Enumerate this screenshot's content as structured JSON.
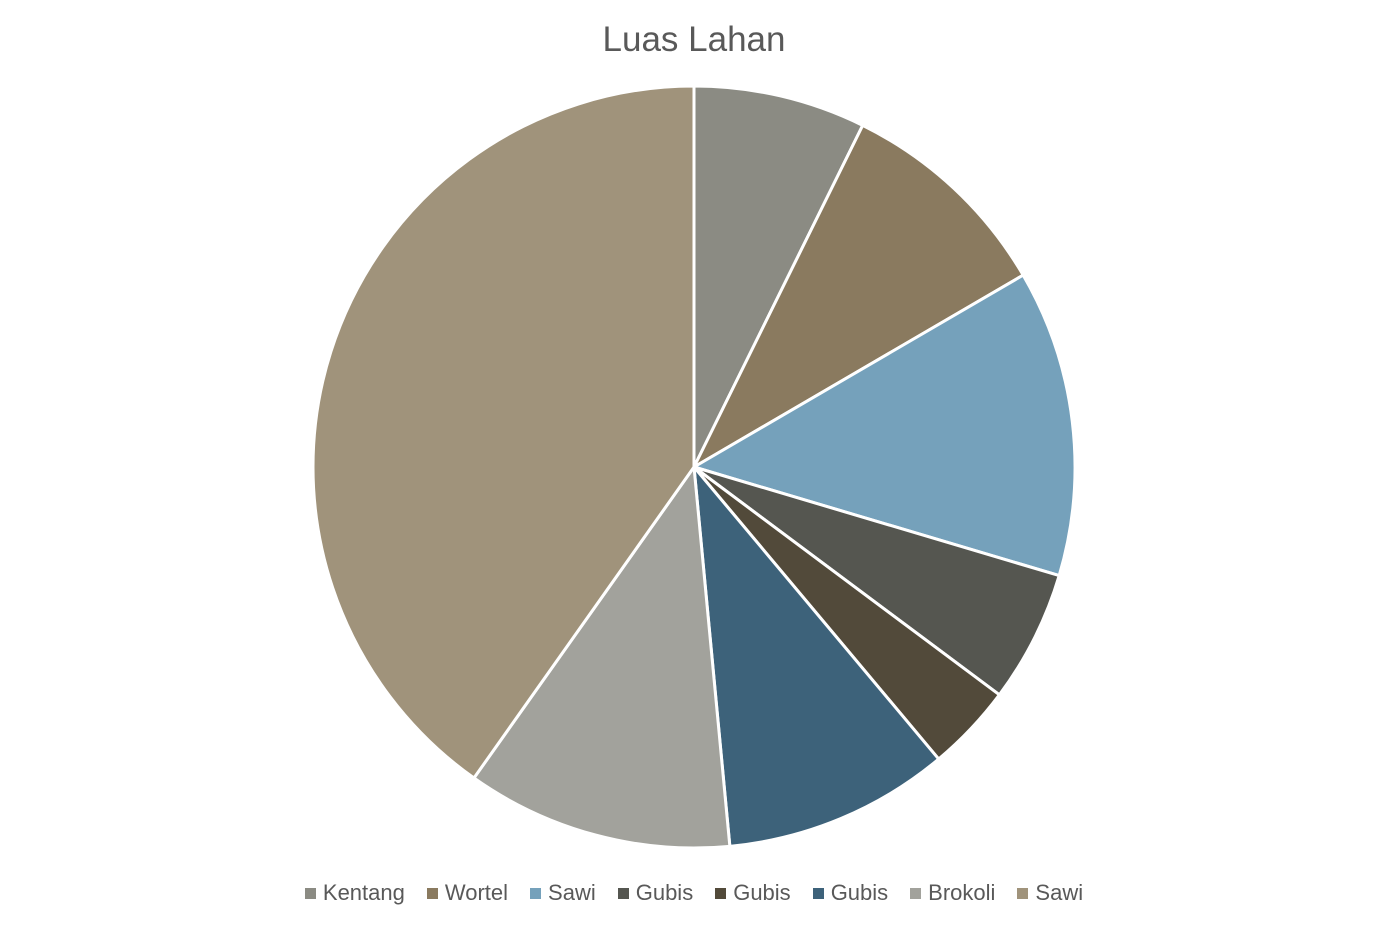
{
  "chart_data": {
    "type": "pie",
    "title": "Luas Lahan",
    "categories": [
      "Kentang",
      "Wortel",
      "Sawi",
      "Gubis",
      "Gubis",
      "Gubis",
      "Brokoli",
      "Sawi"
    ],
    "values": [
      7.3,
      9.3,
      13.0,
      5.6,
      3.7,
      9.6,
      11.3,
      40.2
    ],
    "colors": [
      "#8b8b83",
      "#8a7a5f",
      "#75a1bb",
      "#555650",
      "#524a3a",
      "#3d627a",
      "#a2a29c",
      "#a0937b"
    ],
    "legend": "bottom"
  }
}
